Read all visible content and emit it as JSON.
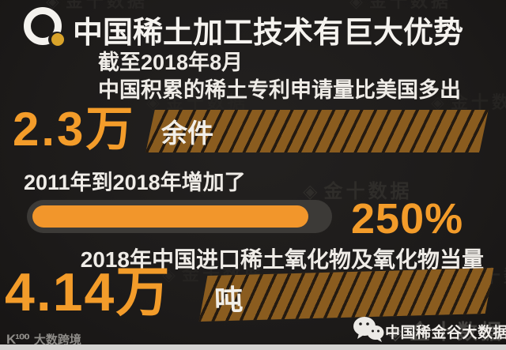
{
  "colors": {
    "background": "#1e1c1b",
    "accent_orange": "#f39c2a",
    "bar_amber": "#8a5c1f",
    "stripe_dark": "#241a10",
    "text_white": "#f2efe9",
    "logo_gold": "#d9a32a",
    "pill_track": "#3c3a37",
    "bottom_strip": "#d5d4d2"
  },
  "header": {
    "title": "中国稀土加工技术有巨大优势",
    "logo": "ring-with-gold-dot"
  },
  "stats": {
    "patents": {
      "line1": "截至2018年8月",
      "line2": "中国积累的稀土专利申请量比美国多出",
      "value": "2.3万",
      "unit": "余件"
    },
    "growth": {
      "label": "2011年到2018年增加了",
      "value": "250%",
      "progress_pct": 94
    },
    "imports": {
      "label": "2018年中国进口稀土氧化物及氧化物当量",
      "value": "4.14万",
      "unit": "吨"
    }
  },
  "watermark": {
    "icon": "◈",
    "text": "金十数据"
  },
  "footer": {
    "left_logo": "K¹⁰⁰",
    "left_text": "大数跨境",
    "right_icon": "wechat-icon",
    "right_text": "中国稀金谷大数据"
  },
  "chart_data": {
    "type": "table",
    "title": "中国稀土加工技术有巨大优势",
    "rows": [
      {
        "label": "截至2018年8月 中国积累的稀土专利申请量比美国多出",
        "display": "2.3万余件",
        "value": 23000,
        "unit": "件"
      },
      {
        "label": "2011年到2018年增加了",
        "display": "250%",
        "value": 250,
        "unit": "%",
        "progress_bar_fill_pct": 94
      },
      {
        "label": "2018年中国进口稀土氧化物及氧化物当量",
        "display": "4.14万吨",
        "value": 41400,
        "unit": "吨"
      }
    ],
    "legend_position": "none",
    "grid": false
  }
}
